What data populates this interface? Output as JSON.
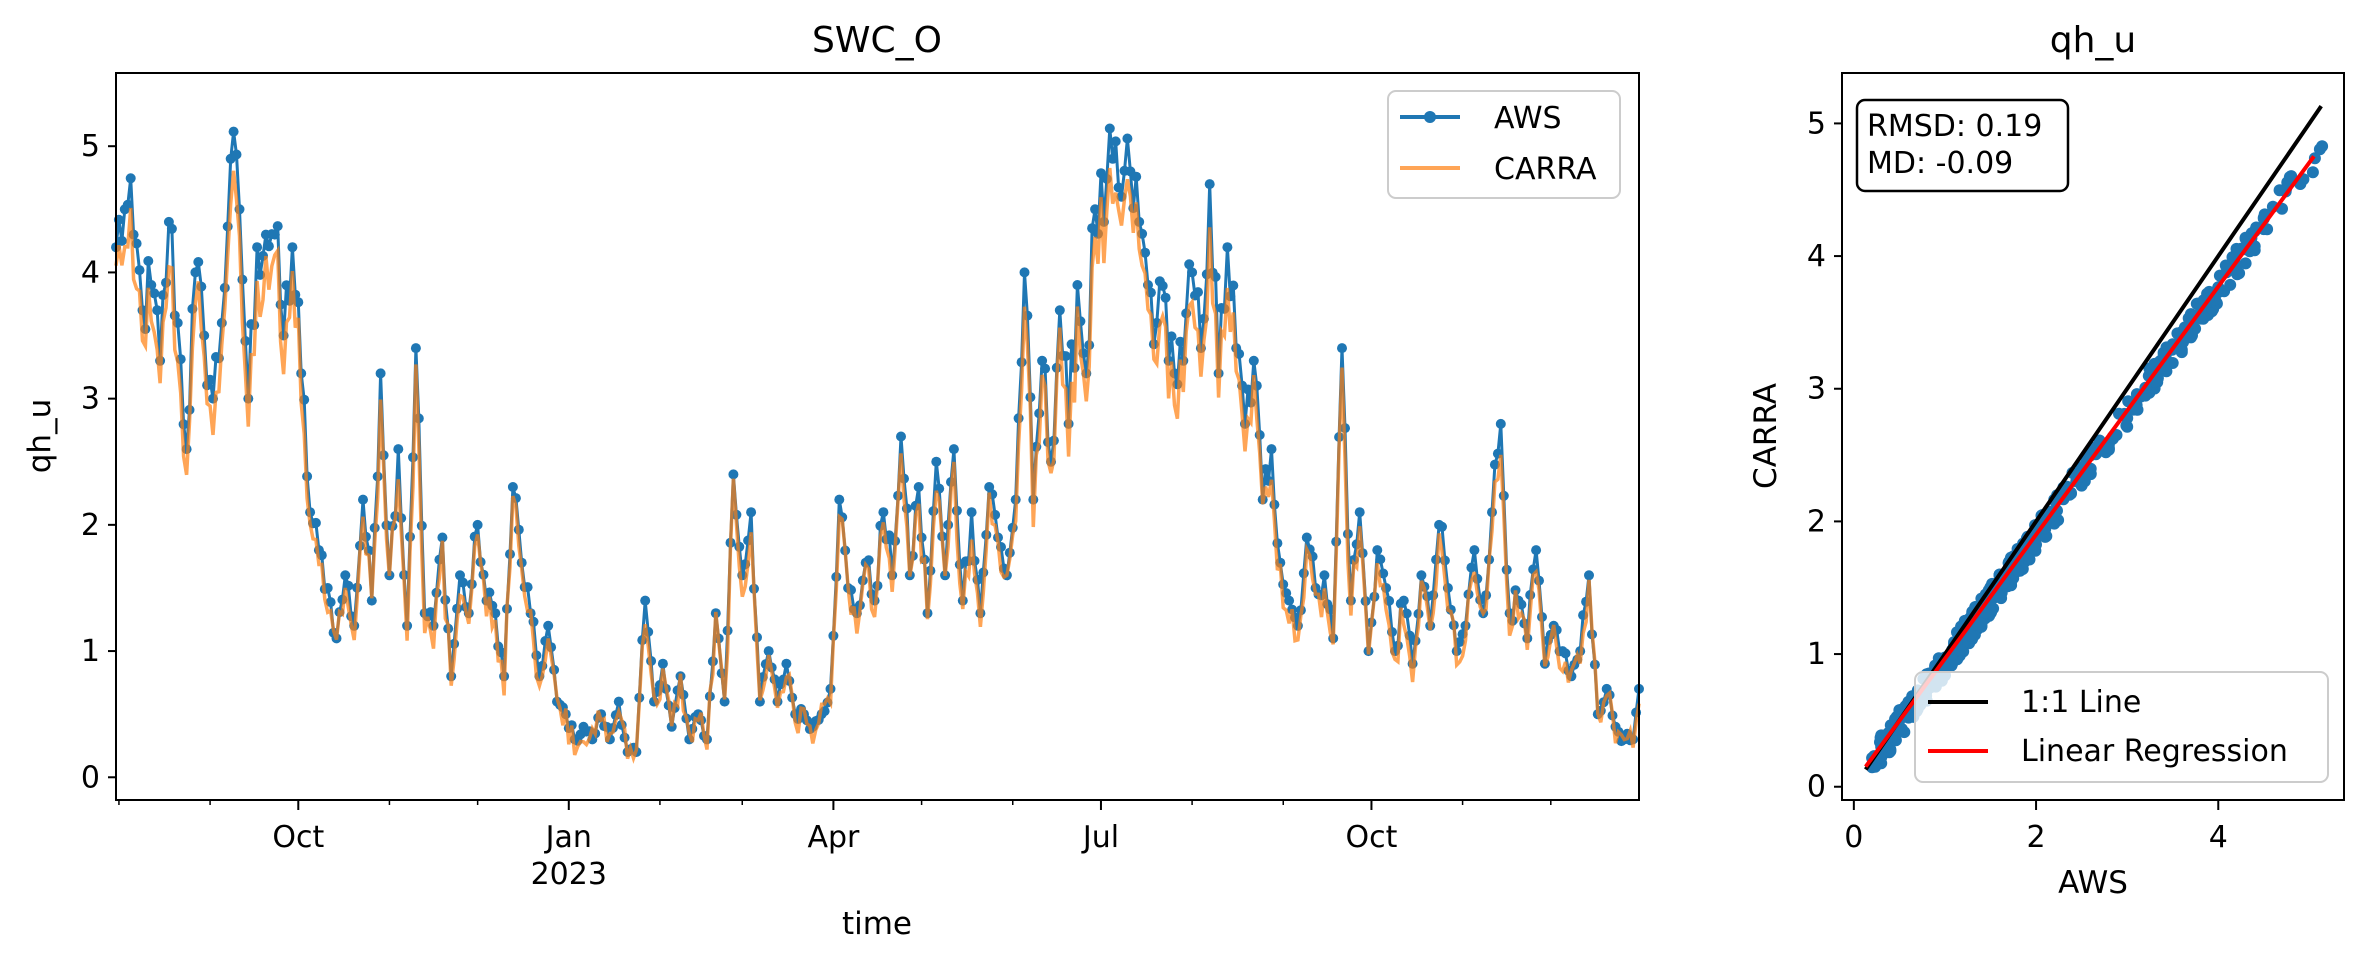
{
  "figure": {
    "panels": 2
  },
  "chart_data": [
    {
      "type": "line",
      "title": "SWC_O",
      "xlabel": "time",
      "ylabel": "qh_u",
      "xlim": [
        "2022-07-31",
        "2023-12-31"
      ],
      "ylim": [
        -0.18,
        5.58
      ],
      "grid": false,
      "legend": "top-right",
      "x_ticks": [
        {
          "date": "2022-10-01",
          "label": "Oct",
          "sublabel": ""
        },
        {
          "date": "2023-01-01",
          "label": "Jan",
          "sublabel": "2023"
        },
        {
          "date": "2023-04-01",
          "label": "Apr",
          "sublabel": ""
        },
        {
          "date": "2023-07-01",
          "label": "Jul",
          "sublabel": ""
        },
        {
          "date": "2023-10-01",
          "label": "Oct",
          "sublabel": ""
        }
      ],
      "y_ticks": [
        0,
        1,
        2,
        3,
        4,
        5
      ],
      "anchors": [
        [
          "2022-07-31",
          4.2
        ],
        [
          "2022-08-03",
          4.5
        ],
        [
          "2022-08-06",
          4.3
        ],
        [
          "2022-08-09",
          3.7
        ],
        [
          "2022-08-12",
          3.9
        ],
        [
          "2022-08-15",
          3.3
        ],
        [
          "2022-08-18",
          4.4
        ],
        [
          "2022-08-21",
          3.6
        ],
        [
          "2022-08-24",
          2.6
        ],
        [
          "2022-08-27",
          4.0
        ],
        [
          "2022-08-30",
          3.5
        ],
        [
          "2022-09-02",
          3.0
        ],
        [
          "2022-09-05",
          3.6
        ],
        [
          "2022-09-08",
          4.9
        ],
        [
          "2022-09-11",
          4.5
        ],
        [
          "2022-09-14",
          3.0
        ],
        [
          "2022-09-17",
          4.2
        ],
        [
          "2022-09-20",
          4.3
        ],
        [
          "2022-09-23",
          4.3
        ],
        [
          "2022-09-26",
          3.5
        ],
        [
          "2022-09-29",
          4.2
        ],
        [
          "2022-10-02",
          3.2
        ],
        [
          "2022-10-05",
          2.1
        ],
        [
          "2022-10-08",
          1.8
        ],
        [
          "2022-10-11",
          1.5
        ],
        [
          "2022-10-14",
          1.1
        ],
        [
          "2022-10-17",
          1.6
        ],
        [
          "2022-10-20",
          1.2
        ],
        [
          "2022-10-23",
          2.2
        ],
        [
          "2022-10-26",
          1.4
        ],
        [
          "2022-10-29",
          3.2
        ],
        [
          "2022-11-01",
          1.6
        ],
        [
          "2022-11-04",
          2.6
        ],
        [
          "2022-11-07",
          1.2
        ],
        [
          "2022-11-10",
          3.4
        ],
        [
          "2022-11-13",
          1.3
        ],
        [
          "2022-11-16",
          1.2
        ],
        [
          "2022-11-19",
          1.9
        ],
        [
          "2022-11-22",
          0.8
        ],
        [
          "2022-11-25",
          1.6
        ],
        [
          "2022-11-28",
          1.3
        ],
        [
          "2022-12-01",
          2.0
        ],
        [
          "2022-12-04",
          1.4
        ],
        [
          "2022-12-07",
          1.3
        ],
        [
          "2022-12-10",
          0.8
        ],
        [
          "2022-12-13",
          2.3
        ],
        [
          "2022-12-16",
          1.7
        ],
        [
          "2022-12-19",
          1.3
        ],
        [
          "2022-12-22",
          0.8
        ],
        [
          "2022-12-25",
          1.2
        ],
        [
          "2022-12-28",
          0.6
        ],
        [
          "2022-12-31",
          0.5
        ],
        [
          "2023-01-03",
          0.3
        ],
        [
          "2023-01-06",
          0.4
        ],
        [
          "2023-01-09",
          0.3
        ],
        [
          "2023-01-12",
          0.5
        ],
        [
          "2023-01-15",
          0.3
        ],
        [
          "2023-01-18",
          0.6
        ],
        [
          "2023-01-21",
          0.2
        ],
        [
          "2023-01-24",
          0.2
        ],
        [
          "2023-01-27",
          1.4
        ],
        [
          "2023-01-30",
          0.6
        ],
        [
          "2023-02-02",
          0.9
        ],
        [
          "2023-02-05",
          0.4
        ],
        [
          "2023-02-08",
          0.8
        ],
        [
          "2023-02-11",
          0.3
        ],
        [
          "2023-02-14",
          0.5
        ],
        [
          "2023-02-17",
          0.3
        ],
        [
          "2023-02-20",
          1.3
        ],
        [
          "2023-02-23",
          0.6
        ],
        [
          "2023-02-26",
          2.4
        ],
        [
          "2023-03-01",
          1.6
        ],
        [
          "2023-03-04",
          2.1
        ],
        [
          "2023-03-07",
          0.6
        ],
        [
          "2023-03-10",
          1.0
        ],
        [
          "2023-03-13",
          0.6
        ],
        [
          "2023-03-16",
          0.9
        ],
        [
          "2023-03-19",
          0.5
        ],
        [
          "2023-03-22",
          0.5
        ],
        [
          "2023-03-25",
          0.4
        ],
        [
          "2023-03-28",
          0.5
        ],
        [
          "2023-03-31",
          0.7
        ],
        [
          "2023-04-03",
          2.2
        ],
        [
          "2023-04-06",
          1.5
        ],
        [
          "2023-04-09",
          1.3
        ],
        [
          "2023-04-12",
          1.7
        ],
        [
          "2023-04-15",
          1.4
        ],
        [
          "2023-04-18",
          2.1
        ],
        [
          "2023-04-21",
          1.6
        ],
        [
          "2023-04-24",
          2.7
        ],
        [
          "2023-04-27",
          1.6
        ],
        [
          "2023-04-30",
          2.3
        ],
        [
          "2023-05-03",
          1.3
        ],
        [
          "2023-05-06",
          2.5
        ],
        [
          "2023-05-09",
          1.6
        ],
        [
          "2023-05-12",
          2.6
        ],
        [
          "2023-05-15",
          1.4
        ],
        [
          "2023-05-18",
          2.1
        ],
        [
          "2023-05-21",
          1.3
        ],
        [
          "2023-05-24",
          2.3
        ],
        [
          "2023-05-27",
          1.9
        ],
        [
          "2023-05-30",
          1.6
        ],
        [
          "2023-06-02",
          2.2
        ],
        [
          "2023-06-05",
          4.0
        ],
        [
          "2023-06-08",
          2.2
        ],
        [
          "2023-06-11",
          3.3
        ],
        [
          "2023-06-14",
          2.5
        ],
        [
          "2023-06-17",
          3.7
        ],
        [
          "2023-06-20",
          2.8
        ],
        [
          "2023-06-23",
          3.9
        ],
        [
          "2023-06-26",
          3.2
        ],
        [
          "2023-06-29",
          4.5
        ],
        [
          "2023-07-02",
          4.4
        ],
        [
          "2023-07-05",
          4.9
        ],
        [
          "2023-07-08",
          4.6
        ],
        [
          "2023-07-11",
          4.8
        ],
        [
          "2023-07-14",
          4.4
        ],
        [
          "2023-07-17",
          3.9
        ],
        [
          "2023-07-20",
          3.6
        ],
        [
          "2023-07-23",
          3.8
        ],
        [
          "2023-07-26",
          3.2
        ],
        [
          "2023-07-29",
          3.3
        ],
        [
          "2023-08-01",
          4.0
        ],
        [
          "2023-08-04",
          3.4
        ],
        [
          "2023-08-07",
          4.7
        ],
        [
          "2023-08-10",
          3.2
        ],
        [
          "2023-08-13",
          4.2
        ],
        [
          "2023-08-16",
          3.4
        ],
        [
          "2023-08-19",
          2.8
        ],
        [
          "2023-08-22",
          3.3
        ],
        [
          "2023-08-25",
          2.2
        ],
        [
          "2023-08-28",
          2.6
        ],
        [
          "2023-08-31",
          1.7
        ],
        [
          "2023-09-03",
          1.4
        ],
        [
          "2023-09-06",
          1.2
        ],
        [
          "2023-09-09",
          1.9
        ],
        [
          "2023-09-12",
          1.5
        ],
        [
          "2023-09-15",
          1.6
        ],
        [
          "2023-09-18",
          1.1
        ],
        [
          "2023-09-21",
          3.4
        ],
        [
          "2023-09-24",
          1.4
        ],
        [
          "2023-09-27",
          2.1
        ],
        [
          "2023-09-30",
          1.0
        ],
        [
          "2023-10-03",
          1.8
        ],
        [
          "2023-10-06",
          1.5
        ],
        [
          "2023-10-09",
          1.0
        ],
        [
          "2023-10-12",
          1.4
        ],
        [
          "2023-10-15",
          0.9
        ],
        [
          "2023-10-18",
          1.6
        ],
        [
          "2023-10-21",
          1.2
        ],
        [
          "2023-10-24",
          2.0
        ],
        [
          "2023-10-27",
          1.5
        ],
        [
          "2023-10-30",
          1.0
        ],
        [
          "2023-11-02",
          1.2
        ],
        [
          "2023-11-05",
          1.8
        ],
        [
          "2023-11-08",
          1.3
        ],
        [
          "2023-11-11",
          2.1
        ],
        [
          "2023-11-14",
          2.8
        ],
        [
          "2023-11-17",
          1.3
        ],
        [
          "2023-11-20",
          1.4
        ],
        [
          "2023-11-23",
          1.1
        ],
        [
          "2023-11-26",
          1.8
        ],
        [
          "2023-11-29",
          0.9
        ],
        [
          "2023-12-02",
          1.2
        ],
        [
          "2023-12-05",
          1.0
        ],
        [
          "2023-12-08",
          0.8
        ],
        [
          "2023-12-11",
          1.0
        ],
        [
          "2023-12-14",
          1.6
        ],
        [
          "2023-12-17",
          0.5
        ],
        [
          "2023-12-20",
          0.7
        ],
        [
          "2023-12-23",
          0.4
        ],
        [
          "2023-12-26",
          0.3
        ],
        [
          "2023-12-29",
          0.3
        ],
        [
          "2023-12-31",
          0.7
        ]
      ],
      "series": [
        {
          "name": "AWS",
          "color": "#1f77b4",
          "marker": "circle",
          "note": "daily values approximated around the anchor points"
        },
        {
          "name": "CARRA",
          "color": "#ff7f0e",
          "marker": "none",
          "opacity": 0.7
        }
      ]
    },
    {
      "type": "scatter",
      "title": "qh_u",
      "xlabel": "AWS",
      "ylabel": "CARRA",
      "xlim": [
        -0.13,
        5.38
      ],
      "ylim": [
        -0.1,
        5.38
      ],
      "x_ticks": [
        0,
        2,
        4
      ],
      "y_ticks": [
        0,
        1,
        2,
        3,
        4,
        5
      ],
      "grid": false,
      "legend": "lower-right",
      "stats": {
        "rmsd": "RMSD: 0.19",
        "md": "MD: -0.09"
      },
      "point_color": "#1f77b4",
      "lines": [
        {
          "name": "1:1 Line",
          "color": "#000000",
          "slope": 1.0,
          "intercept": 0.0,
          "x_range": [
            0.13,
            5.13
          ]
        },
        {
          "name": "Linear Regression",
          "color": "#ff0000",
          "slope": 0.935,
          "intercept": 0.03,
          "x_range": [
            0.13,
            5.05
          ]
        }
      ],
      "points_note": "approximately 520 points from the AWS/CARRA daily pairs"
    }
  ]
}
